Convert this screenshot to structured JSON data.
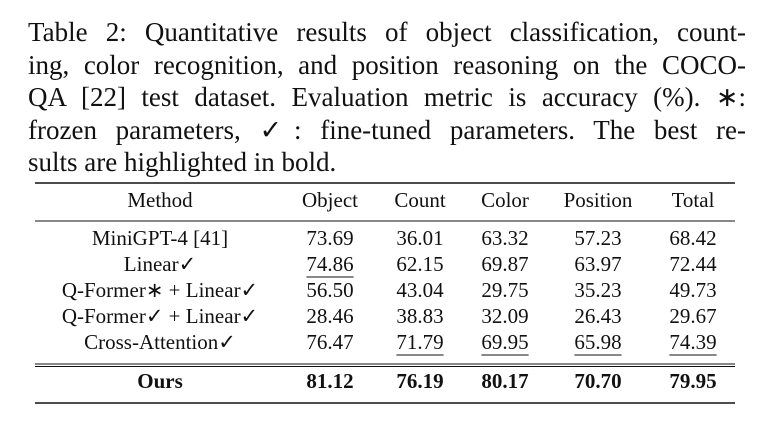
{
  "caption": {
    "lines": [
      "Table 2: Quantitative results of object classification, count-",
      "ing, color recognition, and position reasoning on the COCO-",
      "QA [22] test dataset. Evaluation metric is accuracy (%). ∗:",
      "frozen parameters, ✓: fine-tuned parameters. The best re-",
      "sults are highlighted in bold."
    ]
  },
  "table": {
    "header": [
      "Method",
      "Object",
      "Count",
      "Color",
      "Position",
      "Total"
    ],
    "rows": [
      {
        "method": "MiniGPT-4 [41]",
        "values": [
          "73.69",
          "36.01",
          "63.32",
          "57.23",
          "68.42"
        ],
        "underline": [
          false,
          false,
          false,
          false,
          false
        ],
        "bold": false
      },
      {
        "method": "Linear✓",
        "values": [
          "74.86",
          "62.15",
          "69.87",
          "63.97",
          "72.44"
        ],
        "underline": [
          true,
          false,
          false,
          false,
          false
        ],
        "bold": false
      },
      {
        "method": "Q-Former∗ + Linear✓",
        "values": [
          "56.50",
          "43.04",
          "29.75",
          "35.23",
          "49.73"
        ],
        "underline": [
          false,
          false,
          false,
          false,
          false
        ],
        "bold": false
      },
      {
        "method": "Q-Former✓ + Linear✓",
        "values": [
          "28.46",
          "38.83",
          "32.09",
          "26.43",
          "29.67"
        ],
        "underline": [
          false,
          false,
          false,
          false,
          false
        ],
        "bold": false
      },
      {
        "method": "Cross-Attention✓",
        "values": [
          "76.47",
          "71.79",
          "69.95",
          "65.98",
          "74.39"
        ],
        "underline": [
          false,
          true,
          true,
          true,
          true
        ],
        "bold": false
      },
      {
        "method": "Ours",
        "values": [
          "81.12",
          "76.19",
          "80.17",
          "70.70",
          "79.95"
        ],
        "underline": [
          false,
          false,
          false,
          false,
          false
        ],
        "bold": true
      }
    ]
  }
}
